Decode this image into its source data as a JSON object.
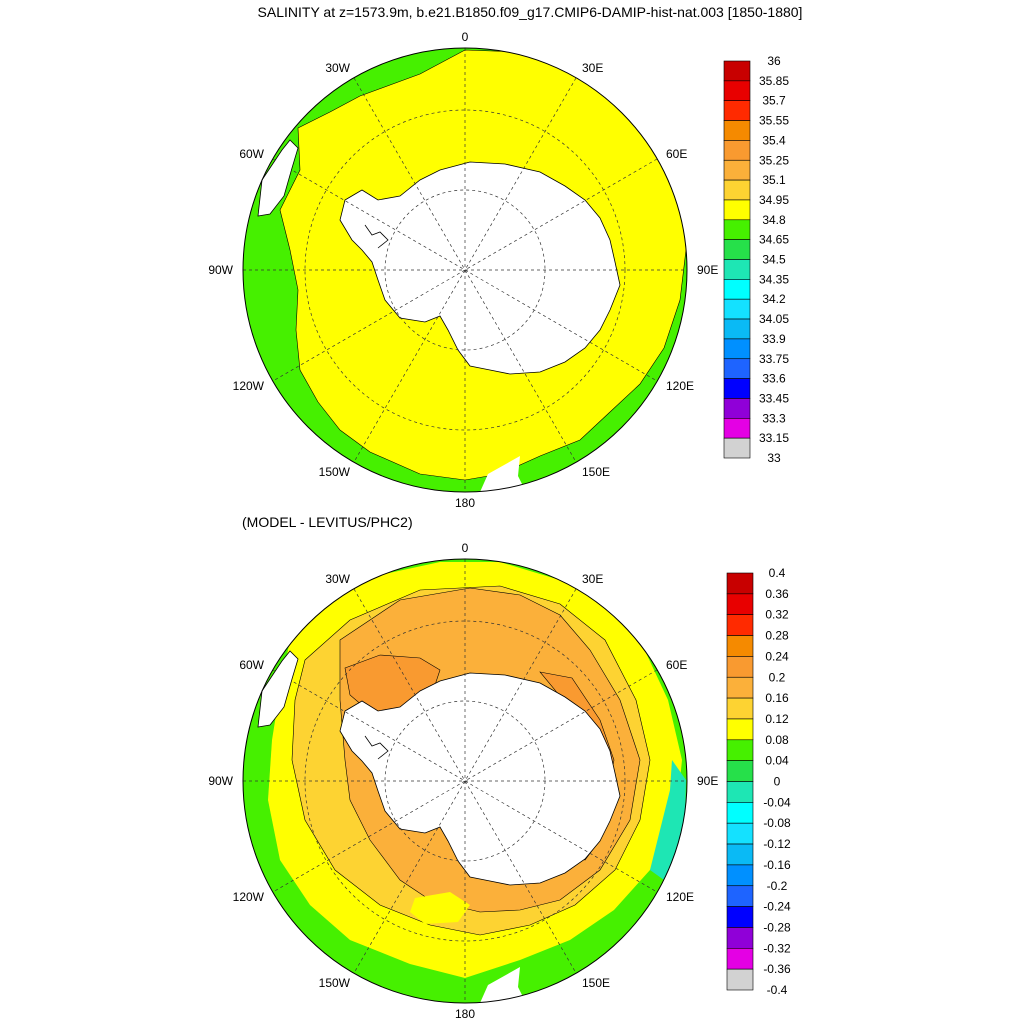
{
  "title_top": "SALINITY at z=1573.9m, b.e21.B1850.f09_g17.CMIP6-DAMIP-hist-nat.003 [1850-1880]",
  "title_bottom": "(MODEL - LEVITUS/PHC2)",
  "map_labels": {
    "north": "0",
    "south": "180",
    "east90": "90E",
    "west90": "90W",
    "e30": "30E",
    "w30": "30W",
    "e60": "60E",
    "w60": "60W",
    "e120": "120E",
    "w120": "120W",
    "e150": "150E",
    "w150": "150W"
  },
  "colorbar_top": {
    "labels": [
      "36",
      "35.85",
      "35.7",
      "35.55",
      "35.4",
      "35.25",
      "35.1",
      "34.95",
      "34.8",
      "34.65",
      "34.5",
      "34.35",
      "34.2",
      "34.05",
      "33.9",
      "33.75",
      "33.6",
      "33.45",
      "33.3",
      "33.15",
      "33"
    ],
    "colors": [
      "#c80000",
      "#e80000",
      "#ff2a00",
      "#f58a00",
      "#f99a30",
      "#fbb03a",
      "#fdd332",
      "#ffff00",
      "#46f000",
      "#26e04a",
      "#1ee6b4",
      "#00ffff",
      "#14e1ff",
      "#0abaf5",
      "#0090ff",
      "#1e64ff",
      "#0000ff",
      "#9000d8",
      "#e400e4",
      "#d2d2d2",
      "#6e6e6e"
    ]
  },
  "colorbar_bottom": {
    "labels": [
      "0.4",
      "0.36",
      "0.32",
      "0.28",
      "0.24",
      "0.2",
      "0.16",
      "0.12",
      "0.08",
      "0.04",
      "0",
      "-0.04",
      "-0.08",
      "-0.12",
      "-0.16",
      "-0.2",
      "-0.24",
      "-0.28",
      "-0.32",
      "-0.36",
      "-0.4"
    ],
    "colors": [
      "#c80000",
      "#e80000",
      "#ff2a00",
      "#f58a00",
      "#f99a30",
      "#fbb03a",
      "#fdd332",
      "#ffff00",
      "#46f000",
      "#26e04a",
      "#1ee6b4",
      "#00ffff",
      "#14e1ff",
      "#0abaf5",
      "#0090ff",
      "#1e64ff",
      "#0000ff",
      "#9000d8",
      "#e400e4",
      "#d2d2d2",
      "#6e6e6e"
    ]
  },
  "field_colors": {
    "top_ocean": "#ffff00",
    "top_rim": "#46f000",
    "bottom_main": "#fdd332",
    "bottom_high": "#fbb03a",
    "bottom_peak": "#f99a30",
    "bottom_low": "#ffff00",
    "bottom_rim": "#46f000",
    "bottom_neg": "#1ee6b4"
  }
}
